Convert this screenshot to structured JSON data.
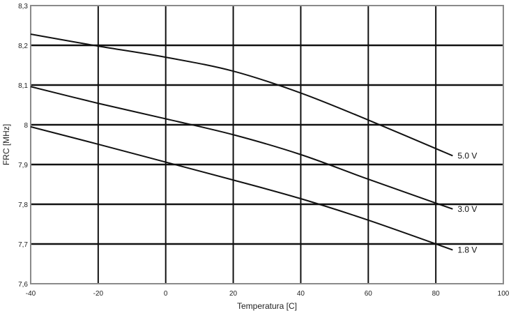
{
  "chart_data": {
    "type": "line",
    "title": "",
    "xlabel": "Temperatura [C]",
    "ylabel": "FRC [MHz]",
    "xlim": [
      -40,
      100
    ],
    "ylim": [
      7.6,
      8.3
    ],
    "x_ticks": [
      -40,
      -20,
      0,
      20,
      40,
      60,
      80,
      100
    ],
    "x_tick_labels": [
      "-40",
      "-20",
      "0",
      "20",
      "40",
      "60",
      "80",
      "100"
    ],
    "y_ticks": [
      7.6,
      7.7,
      7.8,
      7.9,
      8.0,
      8.1,
      8.2,
      8.3
    ],
    "y_tick_labels": [
      "7,6",
      "7,7",
      "7,8",
      "7,9",
      "8",
      "8,1",
      "8,2",
      "8,3"
    ],
    "grid": true,
    "legend": "none",
    "colors": {
      "line": "#111111",
      "grid": "#111111",
      "frame": "#8a8a8a"
    },
    "series": [
      {
        "name": "5.0 V",
        "x": [
          -40,
          -20,
          0,
          20,
          40,
          60,
          85
        ],
        "values": [
          8.228,
          8.198,
          8.17,
          8.135,
          8.08,
          8.012,
          7.922
        ]
      },
      {
        "name": "3.0 V",
        "x": [
          -40,
          -20,
          0,
          20,
          40,
          60,
          85
        ],
        "values": [
          8.096,
          8.054,
          8.015,
          7.975,
          7.925,
          7.863,
          7.788
        ]
      },
      {
        "name": "1.8 V",
        "x": [
          -40,
          -20,
          0,
          20,
          40,
          60,
          85
        ],
        "values": [
          7.995,
          7.951,
          7.906,
          7.861,
          7.814,
          7.76,
          7.685
        ]
      }
    ]
  }
}
